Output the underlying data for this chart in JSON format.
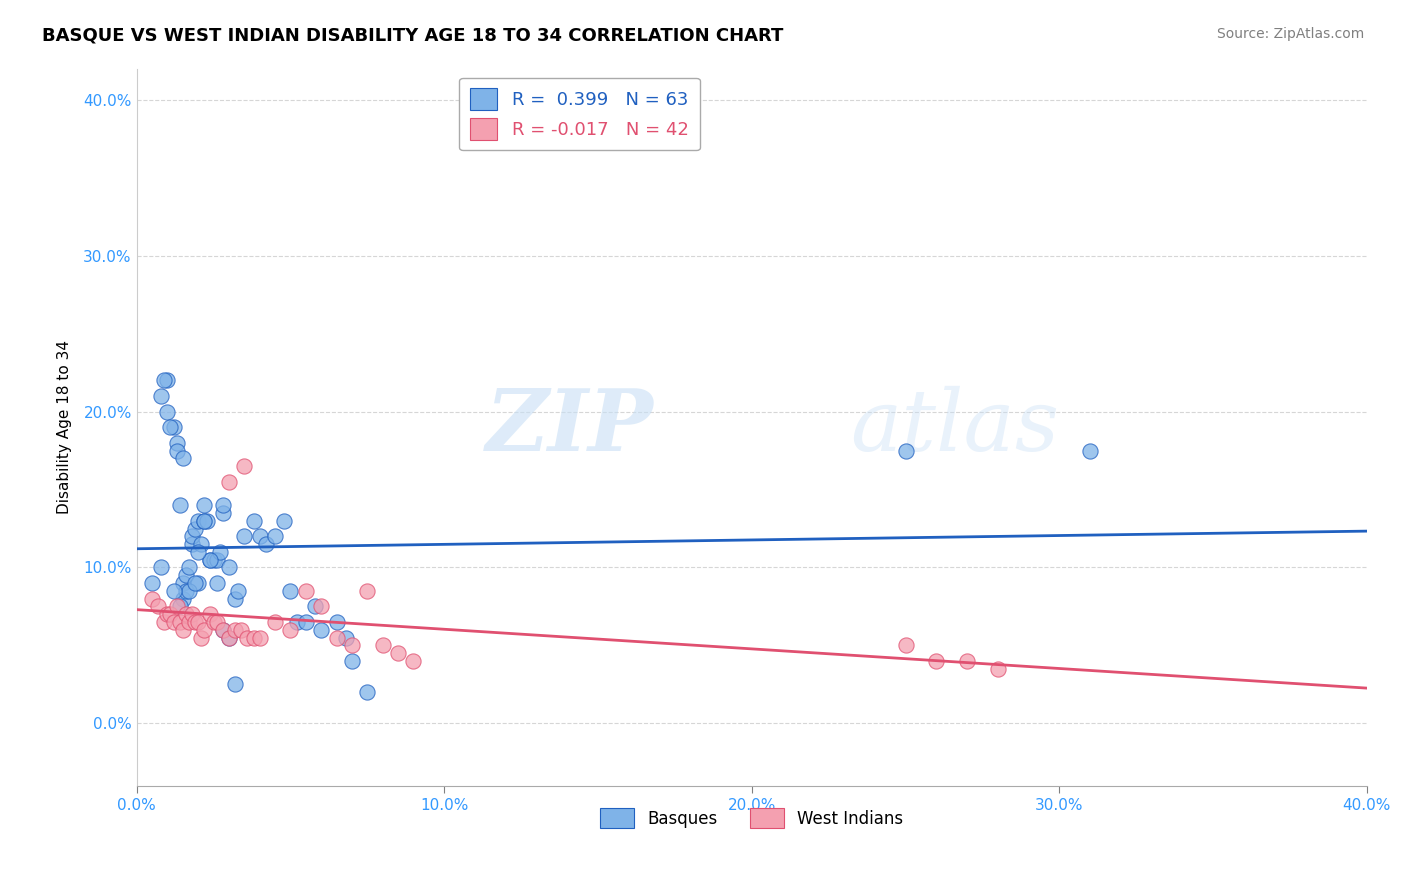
{
  "title": "BASQUE VS WEST INDIAN DISABILITY AGE 18 TO 34 CORRELATION CHART",
  "source": "Source: ZipAtlas.com",
  "ylabel_label": "Disability Age 18 to 34",
  "xmin": 0.0,
  "xmax": 0.4,
  "ymin": -0.04,
  "ymax": 0.42,
  "basque_R": 0.399,
  "basque_N": 63,
  "westindian_R": -0.017,
  "westindian_N": 42,
  "basque_color": "#7fb3e8",
  "basque_line_color": "#2060c0",
  "westindian_color": "#f4a0b0",
  "westindian_line_color": "#e05070",
  "legend_label_basque": "Basques",
  "legend_label_westindian": "West Indians",
  "watermark_zip": "ZIP",
  "watermark_atlas": "atlas",
  "basque_x": [
    0.005,
    0.008,
    0.01,
    0.01,
    0.012,
    0.013,
    0.014,
    0.015,
    0.015,
    0.016,
    0.017,
    0.018,
    0.018,
    0.019,
    0.02,
    0.02,
    0.022,
    0.022,
    0.023,
    0.024,
    0.025,
    0.026,
    0.027,
    0.028,
    0.028,
    0.03,
    0.032,
    0.033,
    0.035,
    0.038,
    0.04,
    0.042,
    0.045,
    0.048,
    0.05,
    0.052,
    0.055,
    0.058,
    0.06,
    0.065,
    0.068,
    0.07,
    0.075,
    0.008,
    0.009,
    0.011,
    0.013,
    0.015,
    0.016,
    0.017,
    0.019,
    0.021,
    0.022,
    0.024,
    0.026,
    0.028,
    0.03,
    0.032,
    0.25,
    0.31,
    0.012,
    0.014,
    0.02
  ],
  "basque_y": [
    0.09,
    0.1,
    0.22,
    0.2,
    0.19,
    0.18,
    0.14,
    0.09,
    0.08,
    0.095,
    0.1,
    0.115,
    0.12,
    0.125,
    0.13,
    0.09,
    0.13,
    0.14,
    0.13,
    0.105,
    0.105,
    0.105,
    0.11,
    0.135,
    0.14,
    0.1,
    0.08,
    0.085,
    0.12,
    0.13,
    0.12,
    0.115,
    0.12,
    0.13,
    0.085,
    0.065,
    0.065,
    0.075,
    0.06,
    0.065,
    0.055,
    0.04,
    0.02,
    0.21,
    0.22,
    0.19,
    0.175,
    0.17,
    0.085,
    0.085,
    0.09,
    0.115,
    0.13,
    0.105,
    0.09,
    0.06,
    0.055,
    0.025,
    0.175,
    0.175,
    0.085,
    0.075,
    0.11
  ],
  "westindian_x": [
    0.005,
    0.007,
    0.009,
    0.01,
    0.011,
    0.012,
    0.013,
    0.014,
    0.015,
    0.016,
    0.017,
    0.018,
    0.019,
    0.02,
    0.021,
    0.022,
    0.024,
    0.025,
    0.026,
    0.028,
    0.03,
    0.032,
    0.034,
    0.036,
    0.038,
    0.04,
    0.045,
    0.05,
    0.055,
    0.06,
    0.065,
    0.07,
    0.075,
    0.08,
    0.085,
    0.09,
    0.25,
    0.26,
    0.27,
    0.28,
    0.03,
    0.035
  ],
  "westindian_y": [
    0.08,
    0.075,
    0.065,
    0.07,
    0.07,
    0.065,
    0.075,
    0.065,
    0.06,
    0.07,
    0.065,
    0.07,
    0.065,
    0.065,
    0.055,
    0.06,
    0.07,
    0.065,
    0.065,
    0.06,
    0.055,
    0.06,
    0.06,
    0.055,
    0.055,
    0.055,
    0.065,
    0.06,
    0.085,
    0.075,
    0.055,
    0.05,
    0.085,
    0.05,
    0.045,
    0.04,
    0.05,
    0.04,
    0.04,
    0.035,
    0.155,
    0.165
  ]
}
